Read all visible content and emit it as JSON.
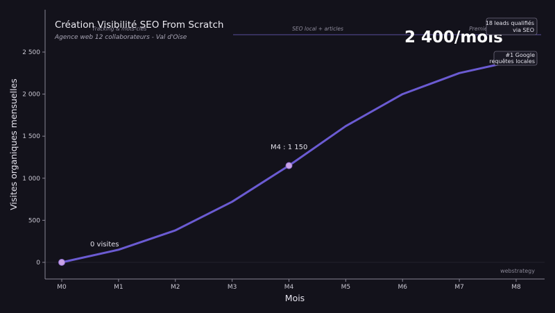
{
  "colors": {
    "background": "#13121b",
    "line": "#6b5bd2",
    "marker": "#c9a2e6",
    "axis": "#8a8796",
    "phase_line": "#5a4f9e"
  },
  "chart_data": {
    "type": "line",
    "title": "Création Visibilité SEO From Scratch",
    "subtitle": "Agence web 12 collaborateurs - Val d'Oise",
    "xlabel": "Mois",
    "ylabel": "Visites organiques mensuelles",
    "categories": [
      "M0",
      "M1",
      "M2",
      "M3",
      "M4",
      "M5",
      "M6",
      "M7",
      "M8"
    ],
    "values": [
      0,
      150,
      380,
      720,
      1150,
      1620,
      2000,
      2250,
      2400
    ],
    "ylim": [
      -200,
      2800
    ],
    "y_ticks": [
      0,
      500,
      1000,
      1500,
      2000,
      2500
    ],
    "y_tick_labels": [
      "0",
      "500",
      "1 000",
      "1 500",
      "2 000",
      "2 500"
    ],
    "highlighted_points": [
      0,
      4,
      8
    ],
    "annotations": {
      "start": "0 visites",
      "mid": "M4 : 1 150",
      "big_value": "2 400/mois"
    },
    "phases": [
      "Tracking & mots-clés",
      "SEO local + articles",
      "Premiers leads"
    ],
    "boxes": {
      "leads": [
        "18 leads qualifiés",
        "via SEO"
      ],
      "google": [
        "#1 Google",
        "requêtes locales"
      ]
    },
    "watermark": "webstrategy",
    "grid": false
  }
}
